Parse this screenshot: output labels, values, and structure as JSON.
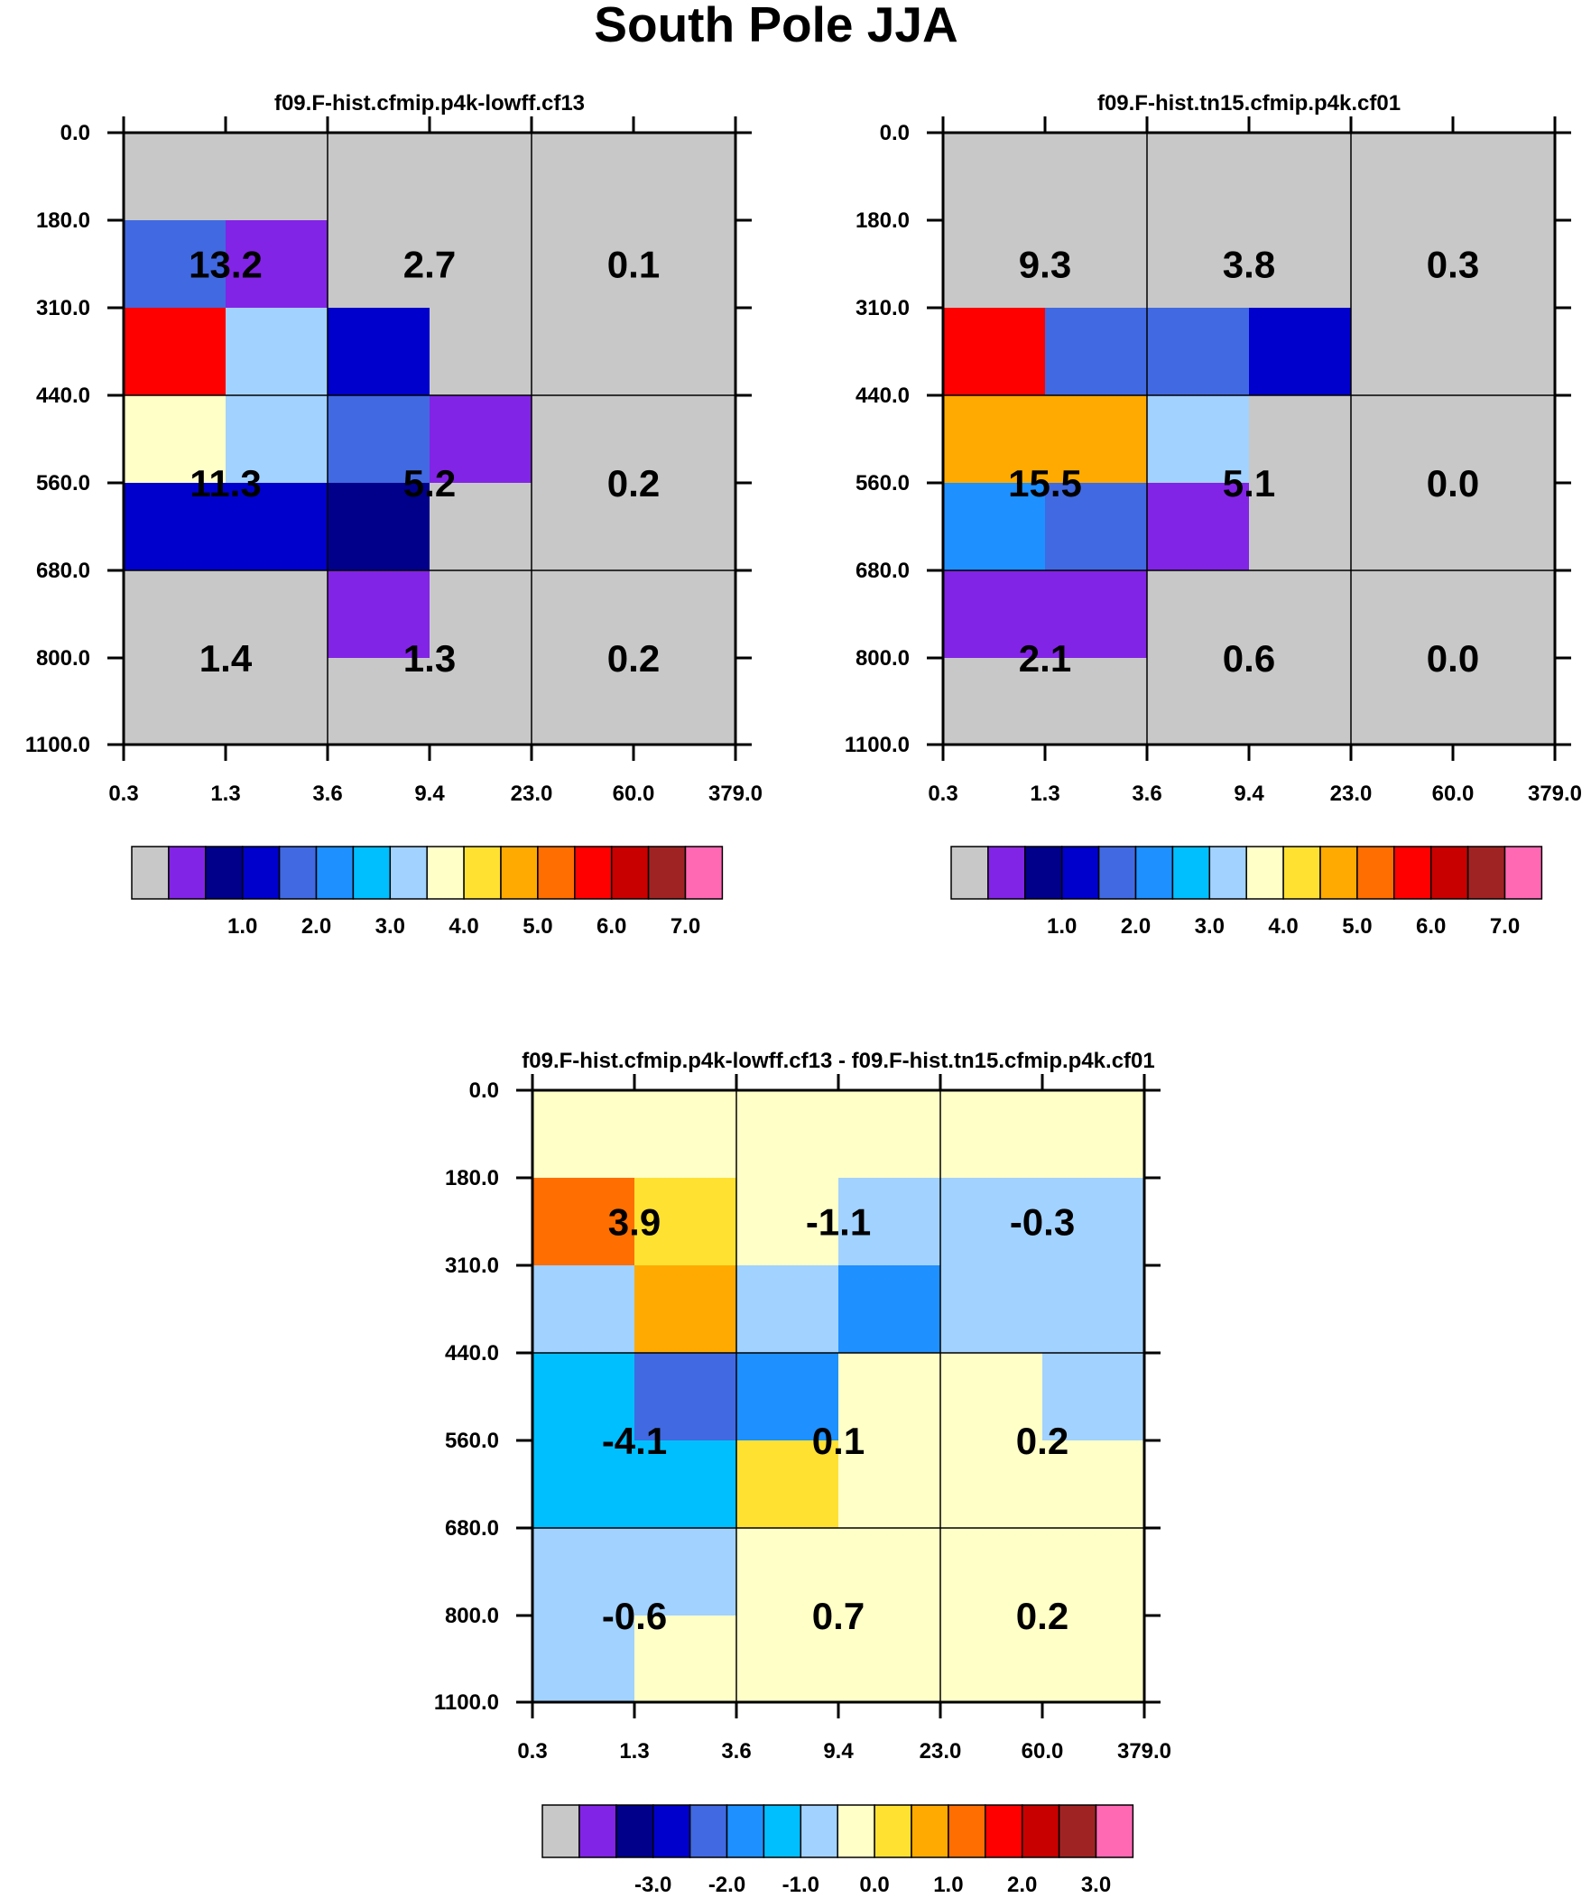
{
  "title": "South Pole JJA",
  "palette": [
    "#c8c8c8",
    "#8224e6",
    "#00008b",
    "#0000cd",
    "#4169e1",
    "#1e90ff",
    "#00bfff",
    "#a2d2ff",
    "#ffffc8",
    "#ffe132",
    "#ffaa00",
    "#ff6e00",
    "#ff0000",
    "#c80000",
    "#a02323",
    "#ff69b4"
  ],
  "chart_data": [
    {
      "type": "heatmap",
      "title": "f09.F-hist.cfmip.p4k-lowff.cf13",
      "x_ticks": [
        "0.3",
        "1.3",
        "3.6",
        "9.4",
        "23.0",
        "60.0",
        "379.0"
      ],
      "y_ticks": [
        "0.0",
        "180.0",
        "310.0",
        "440.0",
        "560.0",
        "680.0",
        "800.0",
        "1100.0"
      ],
      "cells": [
        [
          0,
          0,
          0,
          0,
          0,
          0
        ],
        [
          4,
          1,
          0,
          0,
          0,
          0
        ],
        [
          12,
          7,
          3,
          0,
          0,
          0
        ],
        [
          8,
          7,
          4,
          1,
          0,
          0
        ],
        [
          3,
          3,
          2,
          0,
          0,
          0
        ],
        [
          0,
          0,
          1,
          0,
          0,
          0
        ],
        [
          0,
          0,
          0,
          0,
          0,
          0
        ]
      ],
      "summary": [
        "13.2",
        "2.7",
        "0.1",
        "11.3",
        "5.2",
        "0.2",
        "1.4",
        "1.3",
        "0.2"
      ],
      "colorbar_labels": [
        "1.0",
        "2.0",
        "3.0",
        "4.0",
        "5.0",
        "6.0",
        "7.0"
      ]
    },
    {
      "type": "heatmap",
      "title": "f09.F-hist.tn15.cfmip.p4k.cf01",
      "x_ticks": [
        "0.3",
        "1.3",
        "3.6",
        "9.4",
        "23.0",
        "60.0",
        "379.0"
      ],
      "y_ticks": [
        "0.0",
        "180.0",
        "310.0",
        "440.0",
        "560.0",
        "680.0",
        "800.0",
        "1100.0"
      ],
      "cells": [
        [
          0,
          0,
          0,
          0,
          0,
          0
        ],
        [
          0,
          0,
          0,
          0,
          0,
          0
        ],
        [
          12,
          4,
          4,
          3,
          0,
          0
        ],
        [
          10,
          10,
          7,
          0,
          0,
          0
        ],
        [
          5,
          4,
          1,
          0,
          0,
          0
        ],
        [
          1,
          1,
          0,
          0,
          0,
          0
        ],
        [
          0,
          0,
          0,
          0,
          0,
          0
        ]
      ],
      "summary": [
        "9.3",
        "3.8",
        "0.3",
        "15.5",
        "5.1",
        "0.0",
        "2.1",
        "0.6",
        "0.0"
      ],
      "colorbar_labels": [
        "1.0",
        "2.0",
        "3.0",
        "4.0",
        "5.0",
        "6.0",
        "7.0"
      ]
    },
    {
      "type": "heatmap",
      "title": "f09.F-hist.cfmip.p4k-lowff.cf13 - f09.F-hist.tn15.cfmip.p4k.cf01",
      "x_ticks": [
        "0.3",
        "1.3",
        "3.6",
        "9.4",
        "23.0",
        "60.0",
        "379.0"
      ],
      "y_ticks": [
        "0.0",
        "180.0",
        "310.0",
        "440.0",
        "560.0",
        "680.0",
        "800.0",
        "1100.0"
      ],
      "cells": [
        [
          8,
          8,
          8,
          8,
          8,
          8
        ],
        [
          11,
          9,
          8,
          7,
          7,
          7
        ],
        [
          7,
          10,
          7,
          5,
          7,
          7
        ],
        [
          6,
          4,
          5,
          8,
          8,
          7
        ],
        [
          6,
          6,
          9,
          8,
          8,
          8
        ],
        [
          7,
          7,
          8,
          8,
          8,
          8
        ],
        [
          7,
          8,
          8,
          8,
          8,
          8
        ]
      ],
      "summary": [
        "3.9",
        "-1.1",
        "-0.3",
        "-4.1",
        "0.1",
        "0.2",
        "-0.6",
        "0.7",
        "0.2"
      ],
      "colorbar_labels": [
        "-3.0",
        "-2.0",
        "-1.0",
        "0.0",
        "1.0",
        "2.0",
        "3.0"
      ]
    }
  ]
}
